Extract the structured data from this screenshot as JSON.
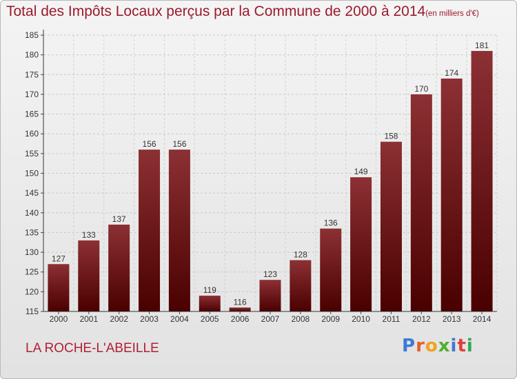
{
  "title": "Total des Impôts Locaux perçus par la Commune de 2000 à 2014",
  "unit": "(en milliers d'€)",
  "commune": "LA ROCHE-L'ABEILLE",
  "logo": {
    "text": "Proxiti",
    "colors": [
      "#3b7bd4",
      "#e2602a",
      "#f2a020",
      "#4caf32",
      "#3b7bd4",
      "#e23d3d",
      "#2fa84f"
    ]
  },
  "colors": {
    "bar_top": "#8c3034",
    "bar_bottom": "#4a0000",
    "title": "#9b1a2c",
    "commune": "#b01f34"
  },
  "chart_data": {
    "type": "bar",
    "title": "Total des Impôts Locaux perçus par la Commune de 2000 à 2014",
    "xlabel": "",
    "ylabel": "en milliers d'€",
    "categories": [
      "2000",
      "2001",
      "2002",
      "2003",
      "2004",
      "2005",
      "2006",
      "2007",
      "2008",
      "2009",
      "2010",
      "2011",
      "2012",
      "2013",
      "2014"
    ],
    "values": [
      127,
      133,
      137,
      156,
      156,
      119,
      116,
      123,
      128,
      136,
      149,
      158,
      170,
      174,
      181
    ],
    "ylim": [
      115,
      185
    ],
    "yticks": [
      115,
      120,
      125,
      130,
      135,
      140,
      145,
      150,
      155,
      160,
      165,
      170,
      175,
      180,
      185
    ],
    "grid": true
  }
}
